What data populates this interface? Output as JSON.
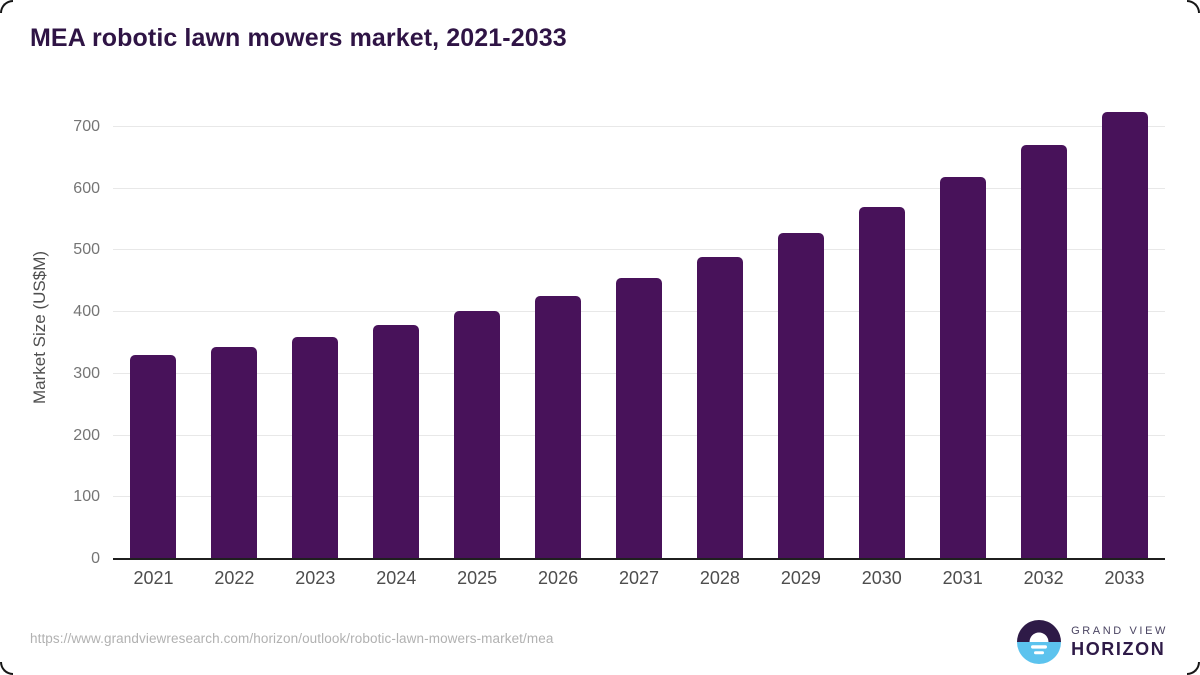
{
  "title": "MEA robotic lawn mowers market, 2021-2033",
  "chart_data": {
    "type": "bar",
    "title": "MEA robotic lawn mowers market, 2021-2033",
    "categories": [
      "2021",
      "2022",
      "2023",
      "2024",
      "2025",
      "2026",
      "2027",
      "2028",
      "2029",
      "2030",
      "2031",
      "2032",
      "2033"
    ],
    "values": [
      330,
      344,
      360,
      379,
      401,
      426,
      456,
      489,
      528,
      570,
      619,
      670,
      724
    ],
    "xlabel": "",
    "ylabel": "Market Size (US$M)",
    "ylim": [
      0,
      750
    ],
    "yticks": [
      0,
      100,
      200,
      300,
      400,
      500,
      600,
      700
    ],
    "grid": true,
    "legend": "none",
    "bar_color": "#48125a",
    "gridline_color": "#e8e8e8",
    "axis_line_color": "#1f1f1f"
  },
  "footer": {
    "source_url": "https://www.grandviewresearch.com/horizon/outlook/robotic-lawn-mowers-market/mea",
    "logo": {
      "line1": "GRAND VIEW",
      "line2": "HORIZON",
      "mark_dark_color": "#2e1a47",
      "mark_blue_color": "#5cc3ee"
    }
  },
  "colors": {
    "title": "#2f1445",
    "background": "#ffffff",
    "tick_label": "#757575",
    "x_label": "#4d4d4d"
  }
}
